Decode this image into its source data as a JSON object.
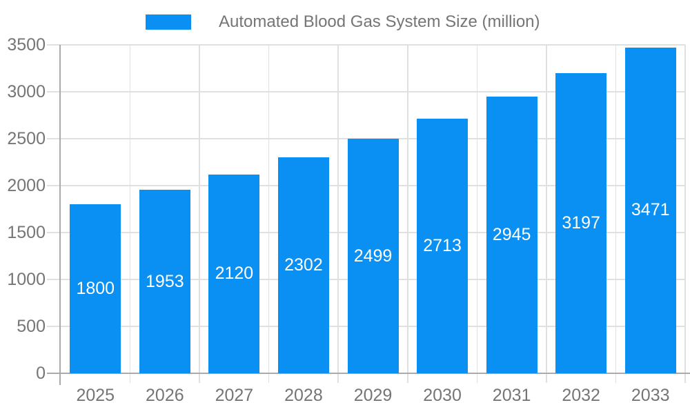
{
  "legend": {
    "label": "Automated Blood Gas System Size (million)"
  },
  "chart_data": {
    "type": "bar",
    "title": "",
    "xlabel": "",
    "ylabel": "",
    "categories": [
      "2025",
      "2026",
      "2027",
      "2028",
      "2029",
      "2030",
      "2031",
      "2032",
      "2033"
    ],
    "series": [
      {
        "name": "Automated Blood Gas System Size (million)",
        "values": [
          1800,
          1953,
          2120,
          2302,
          2499,
          2713,
          2945,
          3197,
          3471
        ]
      }
    ],
    "ylim": [
      0,
      3500
    ],
    "ytick_step": 500,
    "ytick_labels": [
      "0",
      "500",
      "1000",
      "1500",
      "2000",
      "2500",
      "3000",
      "3500"
    ],
    "grid": true,
    "legend_position": "top-center",
    "value_labels": "inside-center",
    "colors": {
      "bar": "#0a8ff2",
      "value_label": "#ffffff",
      "grid": "#e0e0e0",
      "axis": "#aaaaaa",
      "tick_label": "#757575",
      "legend_text": "#757575",
      "background": "#ffffff"
    }
  }
}
